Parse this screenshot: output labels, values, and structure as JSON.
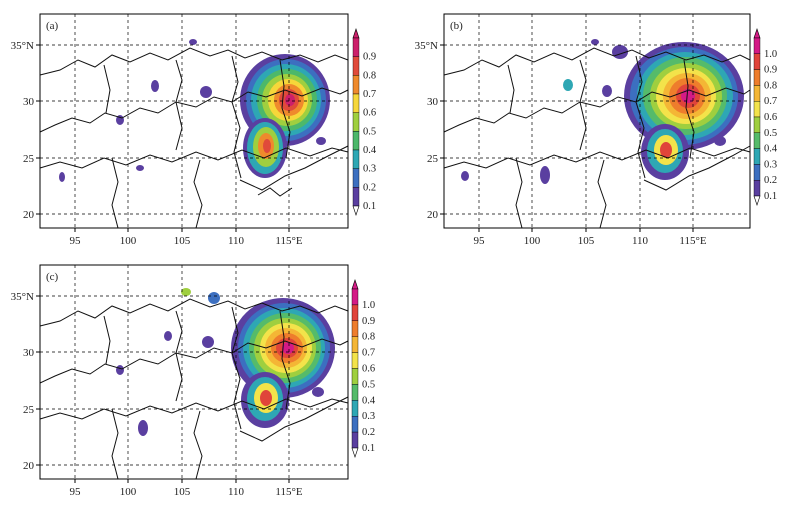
{
  "figure": {
    "panels": [
      {
        "id": "a",
        "label": "(a)",
        "colorbar": [
          "0.9",
          "0.8",
          "0.7",
          "0.6",
          "0.5",
          "0.4",
          "0.3",
          "0.2",
          "0.1"
        ],
        "colorbar_colors": [
          "#cc1f6a",
          "#e04a3a",
          "#ef8a2c",
          "#f6d73a",
          "#9fcf3f",
          "#4cb86a",
          "#2ea7b4",
          "#3c6fc0",
          "#5a3fa0"
        ]
      },
      {
        "id": "b",
        "label": "(b)",
        "colorbar": [
          "1.0",
          "0.9",
          "0.8",
          "0.7",
          "0.6",
          "0.5",
          "0.4",
          "0.3",
          "0.2",
          "0.1"
        ],
        "colorbar_colors": [
          "#d41a86",
          "#e0443a",
          "#ee7d2c",
          "#f4b635",
          "#f3e34a",
          "#9fcf3f",
          "#55bb6a",
          "#2ea7b4",
          "#3c6fc0",
          "#5a3fa0"
        ]
      },
      {
        "id": "c",
        "label": "(c)",
        "colorbar": [
          "1.0",
          "0.9",
          "0.8",
          "0.7",
          "0.6",
          "0.5",
          "0.4",
          "0.3",
          "0.2",
          "0.1"
        ],
        "colorbar_colors": [
          "#d41a86",
          "#e0443a",
          "#ee7d2c",
          "#f4b635",
          "#f3e34a",
          "#9fcf3f",
          "#55bb6a",
          "#2ea7b4",
          "#3c6fc0",
          "#5a3fa0"
        ]
      }
    ],
    "x_ticks": [
      "95",
      "100",
      "105",
      "110",
      "115°E"
    ],
    "y_ticks": [
      "35°N",
      "30",
      "25",
      "20"
    ]
  }
}
